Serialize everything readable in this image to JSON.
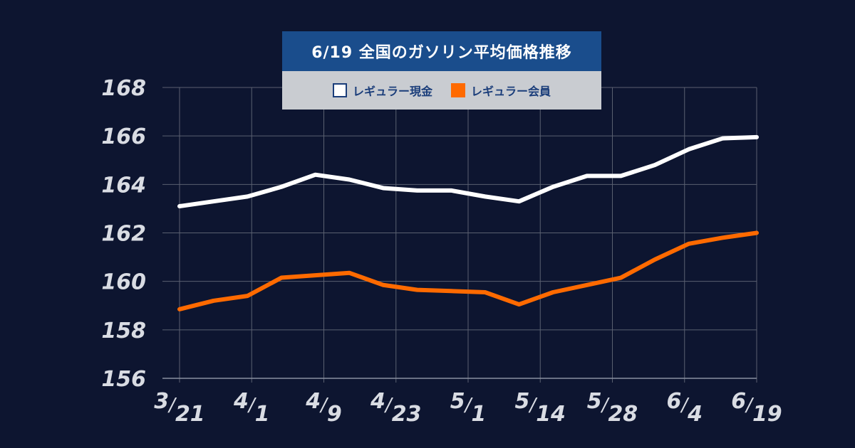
{
  "legend": {
    "title": "6/19  全国のガソリン平均価格推移",
    "items": [
      {
        "label": "レギュラー現金",
        "color": "#ffffff"
      },
      {
        "label": "レギュラー会員",
        "color": "#ff6a00"
      }
    ]
  },
  "chart_data": {
    "type": "line",
    "title": "6/19  全国のガソリン平均価格推移",
    "ylim": [
      156,
      168
    ],
    "yticks": [
      "156",
      "158",
      "160",
      "162",
      "164",
      "166",
      "168"
    ],
    "x_tick_labels": [
      {
        "month": "3",
        "day": "21"
      },
      {
        "month": "4",
        "day": "1"
      },
      {
        "month": "4",
        "day": "9"
      },
      {
        "month": "4",
        "day": "23"
      },
      {
        "month": "5",
        "day": "1"
      },
      {
        "month": "5",
        "day": "14"
      },
      {
        "month": "5",
        "day": "28"
      },
      {
        "month": "6",
        "day": "4"
      },
      {
        "month": "6",
        "day": "19"
      }
    ],
    "grid": true,
    "series": [
      {
        "name": "レギュラー現金",
        "color": "#ffffff",
        "values": [
          163.1,
          163.3,
          163.5,
          163.9,
          164.4,
          164.2,
          163.85,
          163.75,
          163.75,
          163.5,
          163.3,
          163.9,
          164.35,
          164.35,
          164.8,
          165.45,
          165.9,
          165.95
        ]
      },
      {
        "name": "レギュラー会員",
        "color": "#ff6a00",
        "values": [
          158.85,
          159.2,
          159.4,
          160.15,
          160.25,
          160.35,
          159.85,
          159.65,
          159.6,
          159.55,
          159.05,
          159.55,
          159.85,
          160.15,
          160.9,
          161.55,
          161.8,
          162.0
        ]
      }
    ]
  }
}
